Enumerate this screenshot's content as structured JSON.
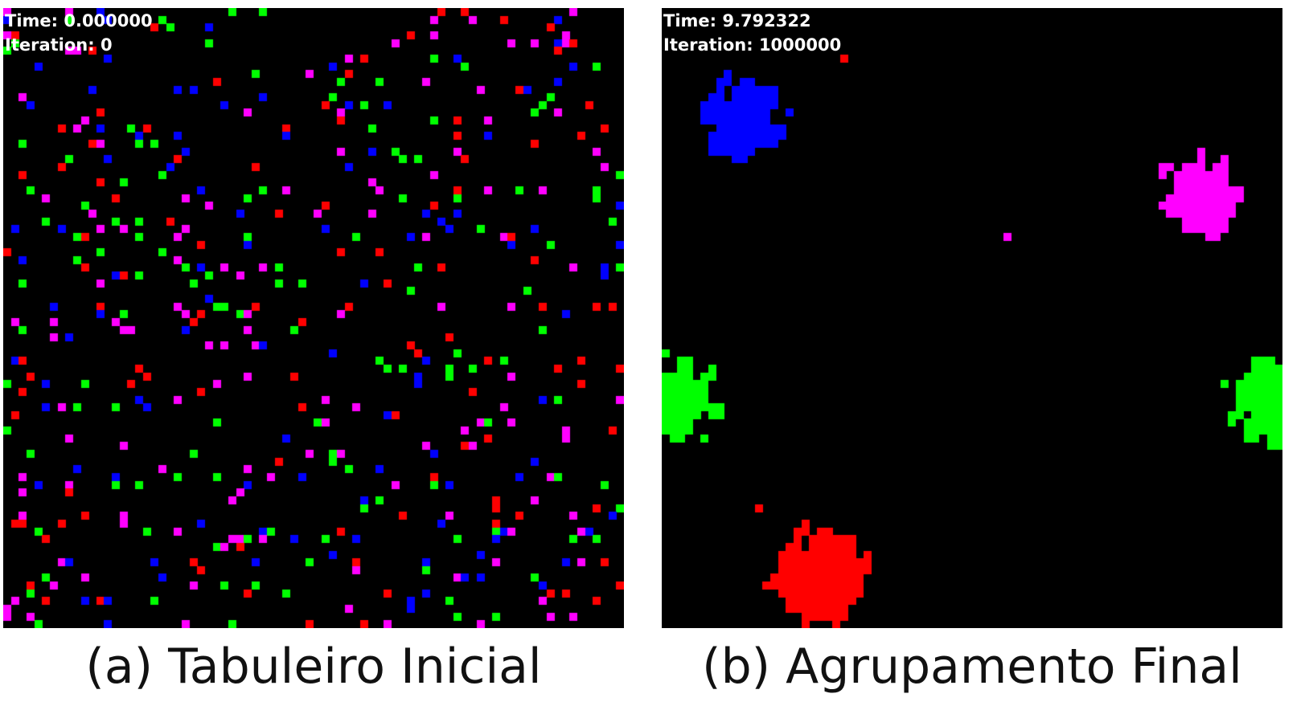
{
  "colors": {
    "red": "#ff0000",
    "green": "#00ff00",
    "blue": "#0000ff",
    "magenta": "#ff00ff",
    "background": "#000000",
    "hud_text": "#ffffff"
  },
  "grid_size": 80,
  "panels": [
    {
      "time_label": "Time: 0.000000",
      "iteration_label": "Iteration: 0",
      "caption": "(a) Tabuleiro Inicial",
      "state": "scattered"
    },
    {
      "time_label": "Time: 9.792322",
      "iteration_label": "Iteration: 1000000",
      "caption": "(b) Agrupamento Final",
      "state": "clustered",
      "clusters": [
        {
          "color": "blue",
          "col": 10,
          "row": 14,
          "radius": 5
        },
        {
          "color": "magenta",
          "col": 69,
          "row": 24,
          "radius": 5
        },
        {
          "color": "green",
          "col": 1,
          "row": 50,
          "radius": 5
        },
        {
          "color": "green",
          "col": 78,
          "row": 50,
          "radius": 5
        },
        {
          "color": "red",
          "col": 20,
          "row": 73,
          "radius": 6
        }
      ],
      "strays": [
        {
          "color": "red",
          "col": 23,
          "row": 6
        },
        {
          "color": "magenta",
          "col": 44,
          "row": 29
        },
        {
          "color": "red",
          "col": 12,
          "row": 64
        }
      ]
    }
  ]
}
